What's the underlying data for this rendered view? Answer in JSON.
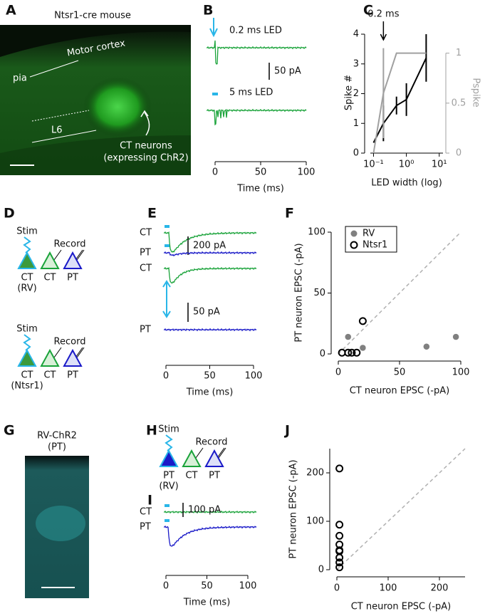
{
  "panels": {
    "A": {
      "letter": "A",
      "title": "Ntsr1-cre mouse",
      "region": "Motor cortex",
      "pia": "pia",
      "layer": "L6",
      "cells": "CT neurons",
      "cells_note": "(expressing ChR2)"
    },
    "B": {
      "letter": "B",
      "trace_labels": [
        "0.2 ms LED",
        "5 ms LED"
      ],
      "scalebar": "50 pA",
      "xlabel": "Time (ms)",
      "xlim": [
        0,
        100
      ],
      "xticks": [
        0,
        50,
        100
      ]
    },
    "D": {
      "letter": "D",
      "rows": [
        {
          "stim": "Stim",
          "record": "Record",
          "source": "CT",
          "source_note": "(RV)",
          "targets": [
            "CT",
            "PT"
          ]
        },
        {
          "stim": "Stim",
          "record": "Record",
          "source": "CT",
          "source_note": "(Ntsr1)",
          "targets": [
            "CT",
            "PT"
          ]
        }
      ]
    },
    "E": {
      "letter": "E",
      "trace_labels": [
        "CT",
        "PT",
        "CT",
        "PT"
      ],
      "scalebars": [
        "200 pA",
        "50 pA"
      ],
      "xlabel": "Time (ms)",
      "xlim": [
        0,
        100
      ],
      "xticks": [
        0,
        50,
        100
      ]
    },
    "G": {
      "letter": "G",
      "title": "RV-ChR2",
      "subtitle": "(PT)"
    },
    "H": {
      "letter": "H",
      "stim": "Stim",
      "record": "Record",
      "source": "PT",
      "source_note": "(RV)",
      "targets": [
        "CT",
        "PT"
      ]
    },
    "I": {
      "letter": "I",
      "trace_labels": [
        "CT",
        "PT"
      ],
      "scalebar": "100 pA",
      "xlabel": "Time (ms)",
      "xlim": [
        0,
        100
      ],
      "xticks": [
        0,
        50,
        100
      ]
    }
  },
  "chart_data": [
    {
      "type": "line",
      "letter": "C",
      "annotation": {
        "text": "0.2 ms",
        "x": 0.2
      },
      "xlabel": "LED width (log)",
      "ylabel": "Spike #",
      "y2label": "Pspike",
      "xlog": true,
      "xlim": [
        0.08,
        13
      ],
      "xticks": [
        {
          "value": 0.1,
          "label": "10⁻¹"
        },
        {
          "value": 1,
          "label": "10⁰"
        },
        {
          "value": 10,
          "label": "10¹"
        }
      ],
      "ylim": [
        0,
        4
      ],
      "yticks": [
        0,
        1,
        2,
        3,
        4
      ],
      "y2lim": [
        0,
        1.19
      ],
      "y2ticks": [
        0,
        0.5,
        1
      ],
      "y2color": "#a0a0a0",
      "series": [
        {
          "color": "#000000",
          "x": [
            0.1,
            0.2,
            0.5,
            1,
            4
          ],
          "values": [
            0.35,
            1.0,
            1.6,
            1.8,
            3.2
          ],
          "errors": [
            0,
            0.6,
            0.3,
            0.55,
            0.8
          ]
        },
        {
          "color": "#a0a0a0",
          "axis": "y2",
          "x": [
            0.1,
            0.2,
            0.5,
            1,
            4
          ],
          "values": [
            0,
            0.6,
            1,
            1,
            1
          ],
          "errors": [
            0,
            0.45,
            0,
            0,
            0
          ]
        }
      ]
    },
    {
      "type": "scatter",
      "letter": "F",
      "xlabel": "CT neuron EPSC (-pA)",
      "ylabel": "PT neuron EPSC (-pA)",
      "xlim": [
        0,
        100
      ],
      "ylim": [
        0,
        100
      ],
      "xticks": [
        0,
        50,
        100
      ],
      "yticks": [
        0,
        50,
        100
      ],
      "identity_line": true,
      "legend": "upper left",
      "series": [
        {
          "name": "RV",
          "color": "#808080",
          "filled": true,
          "x": [
            8,
            20,
            72,
            96
          ],
          "values": [
            14,
            5,
            6,
            14
          ]
        },
        {
          "name": "Ntsr1",
          "color": "#000000",
          "filled": false,
          "x": [
            3,
            8,
            11,
            15,
            20
          ],
          "values": [
            1,
            1,
            1,
            1,
            27
          ]
        }
      ]
    },
    {
      "type": "scatter",
      "letter": "J",
      "xlabel": "CT neuron EPSC (-pA)",
      "ylabel": "PT neuron EPSC (-pA)",
      "xlim": [
        0,
        250
      ],
      "ylim": [
        0,
        250
      ],
      "xticks": [
        0,
        100,
        200
      ],
      "yticks": [
        0,
        100,
        200
      ],
      "identity_line": true,
      "series": [
        {
          "color": "#000000",
          "filled": false,
          "x": [
            5,
            5,
            5,
            5,
            5,
            5,
            5,
            5,
            5
          ],
          "values": [
            209,
            93,
            70,
            52,
            40,
            38,
            25,
            15,
            5
          ]
        }
      ]
    }
  ]
}
